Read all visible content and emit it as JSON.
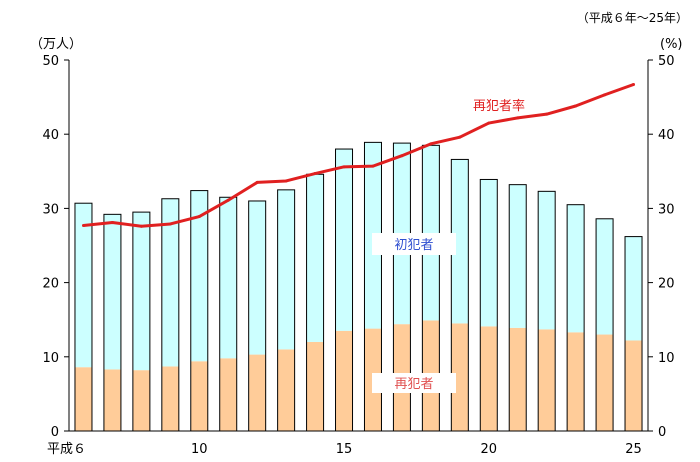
{
  "chart_data": {
    "type": "bar",
    "note": "（平成６年～25年）",
    "left_axis_unit": "（万人）",
    "right_axis_unit": "(%)",
    "years": [
      6,
      7,
      8,
      9,
      10,
      11,
      12,
      13,
      14,
      15,
      16,
      17,
      18,
      19,
      20,
      21,
      22,
      23,
      24,
      25
    ],
    "x_tick_labels": [
      {
        "year": 6,
        "label": "平成６"
      },
      {
        "year": 10,
        "label": "10"
      },
      {
        "year": 15,
        "label": "15"
      },
      {
        "year": 20,
        "label": "20"
      },
      {
        "year": 25,
        "label": "25"
      }
    ],
    "y_ticks": [
      0,
      10,
      20,
      30,
      40,
      50
    ],
    "ylim": [
      0,
      50
    ],
    "y2lim": [
      0,
      50
    ],
    "series": [
      {
        "name": "再犯者",
        "kind": "stacked-bar",
        "color": "#FFCC99",
        "label_color": "#E05050",
        "values": [
          8.6,
          8.3,
          8.2,
          8.7,
          9.4,
          9.8,
          10.3,
          11.0,
          12.0,
          13.5,
          13.8,
          14.4,
          14.9,
          14.5,
          14.1,
          13.9,
          13.7,
          13.3,
          13.0,
          12.2
        ]
      },
      {
        "name": "初犯者",
        "kind": "stacked-bar",
        "color": "#CCFFFF",
        "label_color": "#3050D0",
        "values": [
          22.1,
          20.9,
          21.3,
          22.6,
          23.0,
          21.7,
          20.7,
          21.5,
          22.6,
          24.5,
          25.1,
          24.4,
          23.6,
          22.1,
          19.8,
          19.3,
          18.6,
          17.2,
          15.6,
          14.0
        ]
      },
      {
        "name": "再犯者率",
        "kind": "line",
        "axis": "right",
        "color": "#E02020",
        "label_color": "#E02020",
        "values": [
          27.7,
          28.1,
          27.6,
          27.9,
          28.9,
          31.1,
          33.5,
          33.7,
          34.7,
          35.6,
          35.7,
          37.1,
          38.7,
          39.6,
          41.5,
          42.2,
          42.7,
          43.8,
          45.3,
          46.7
        ]
      }
    ]
  }
}
